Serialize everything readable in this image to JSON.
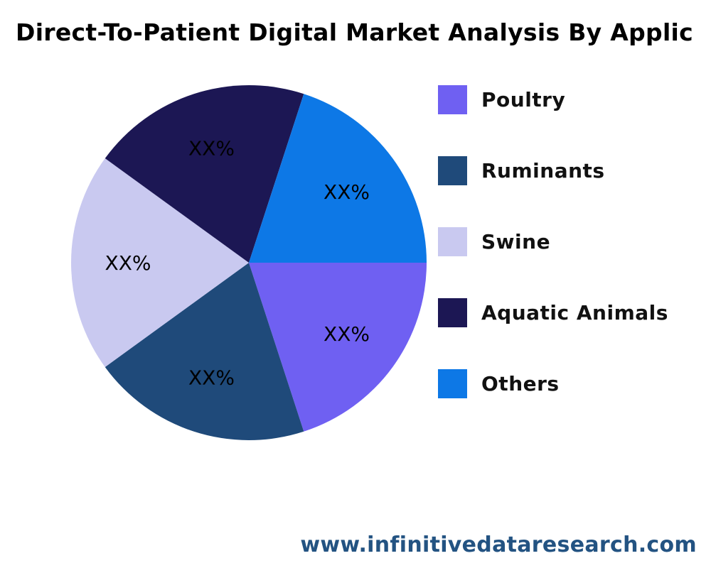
{
  "chart_data": {
    "type": "pie",
    "title": "Direct-To-Patient Digital Market Analysis By Applic",
    "categories": [
      "Poultry",
      "Ruminants",
      "Swine",
      "Aquatic Animals",
      "Others"
    ],
    "values": [
      20,
      20,
      20,
      20,
      20
    ],
    "data_labels": [
      "XX%",
      "XX%",
      "XX%",
      "XX%",
      "XX%"
    ],
    "colors": [
      "#6F60F2",
      "#1F4A7A",
      "#C9C9F0",
      "#1C1754",
      "#0D78E6"
    ],
    "legend_position": "right"
  },
  "footer": {
    "website": "www.infinitivedataresearch.com"
  }
}
